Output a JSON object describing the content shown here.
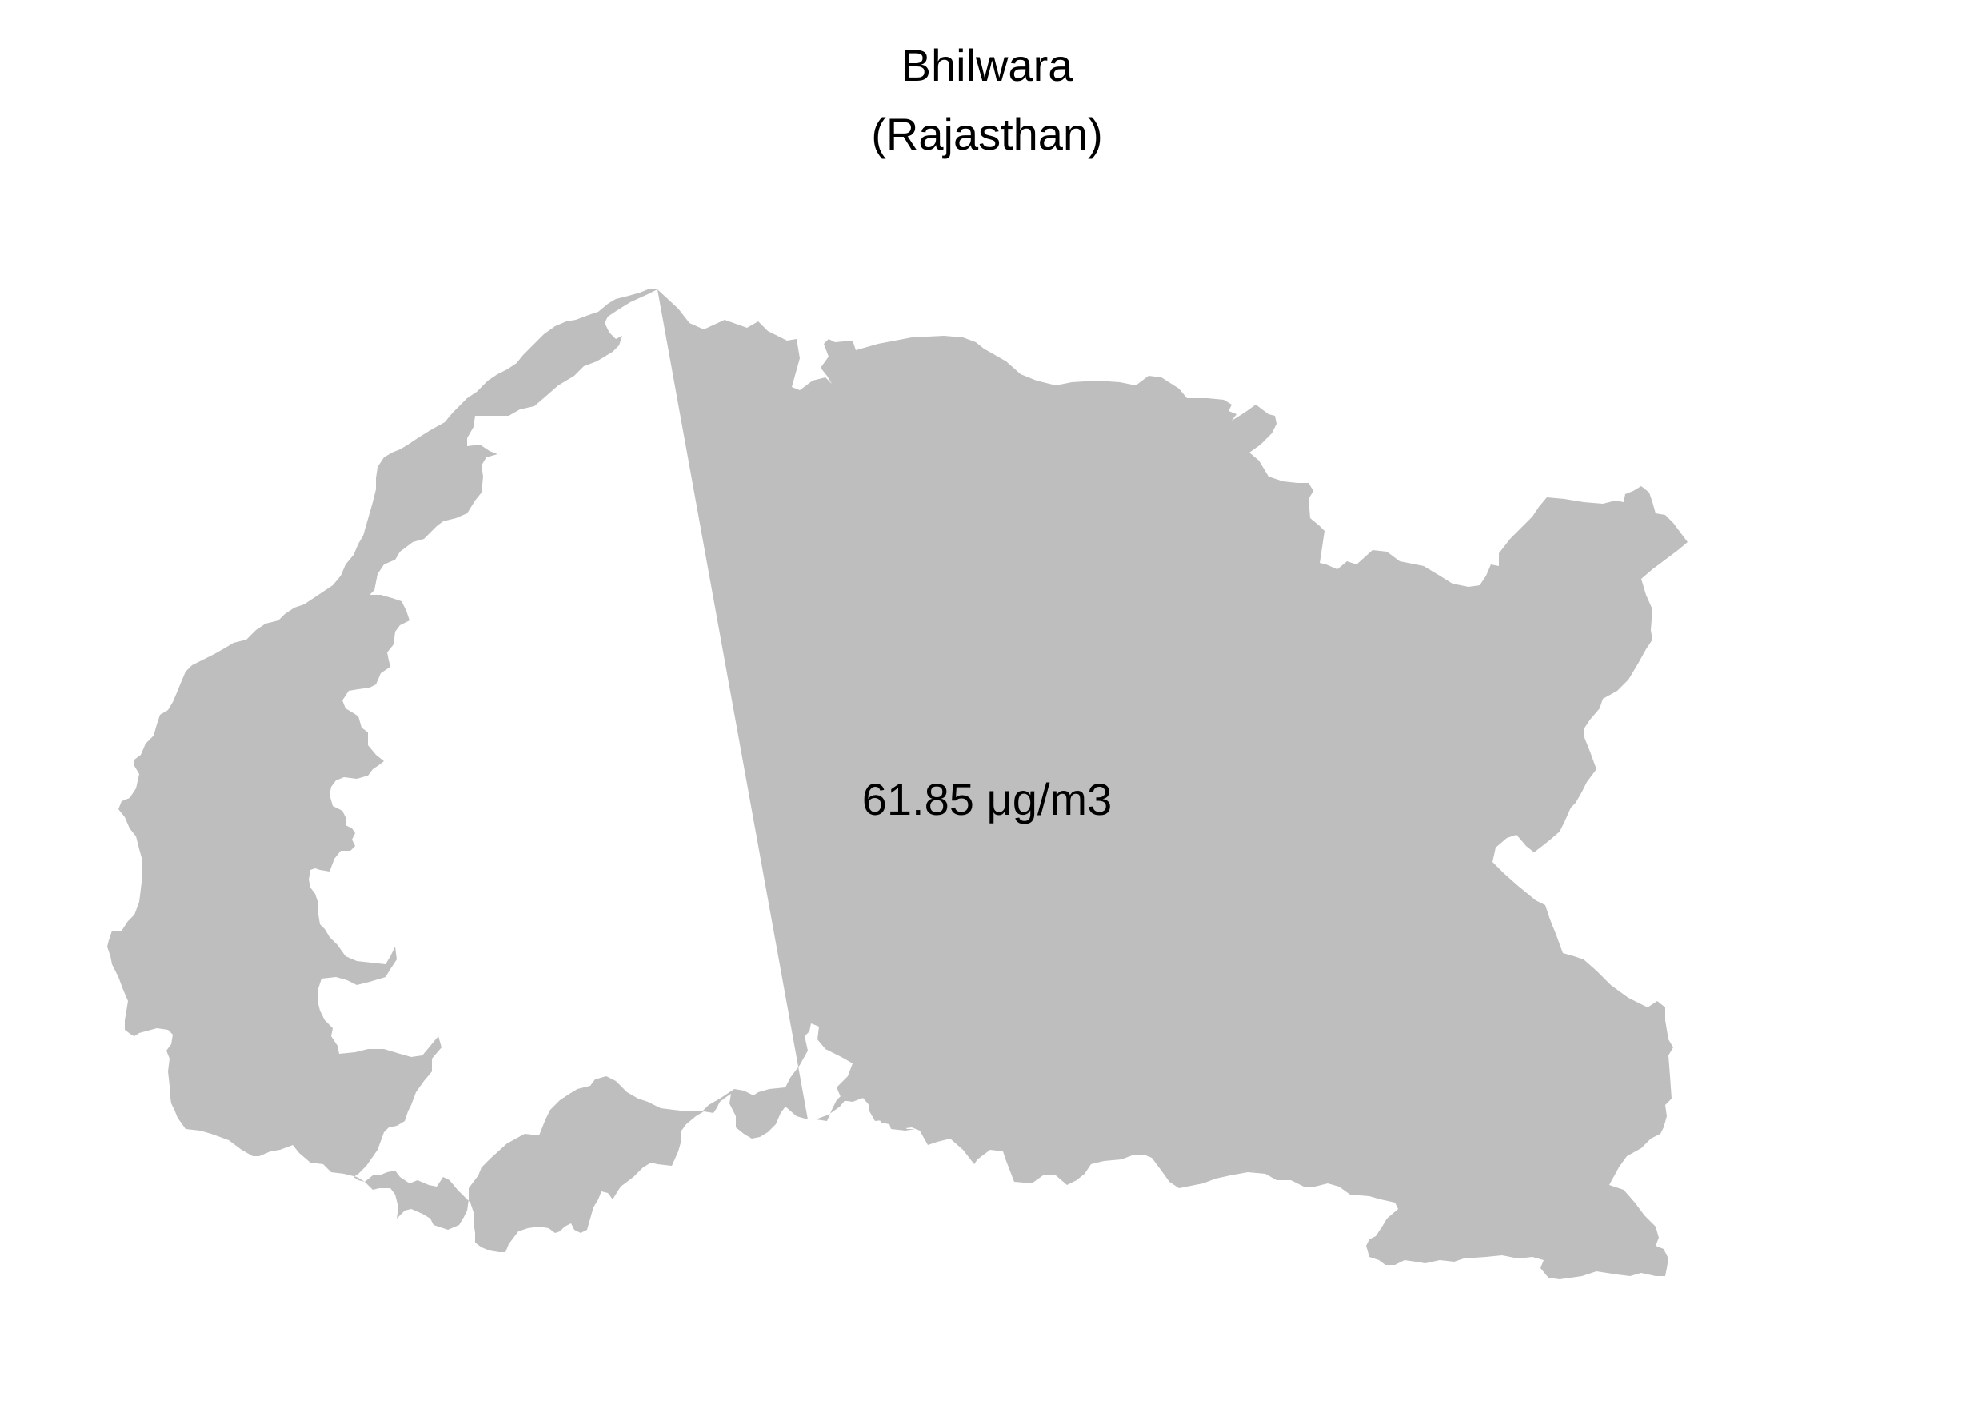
{
  "map": {
    "title": "Bhilwara",
    "subtitle": "(Rajasthan)",
    "region_name": "Bhilwara",
    "state_name": "Rajasthan",
    "value_label": "61.85 μg/m3",
    "fill_color": "#bebebe",
    "background_color": "#ffffff"
  }
}
